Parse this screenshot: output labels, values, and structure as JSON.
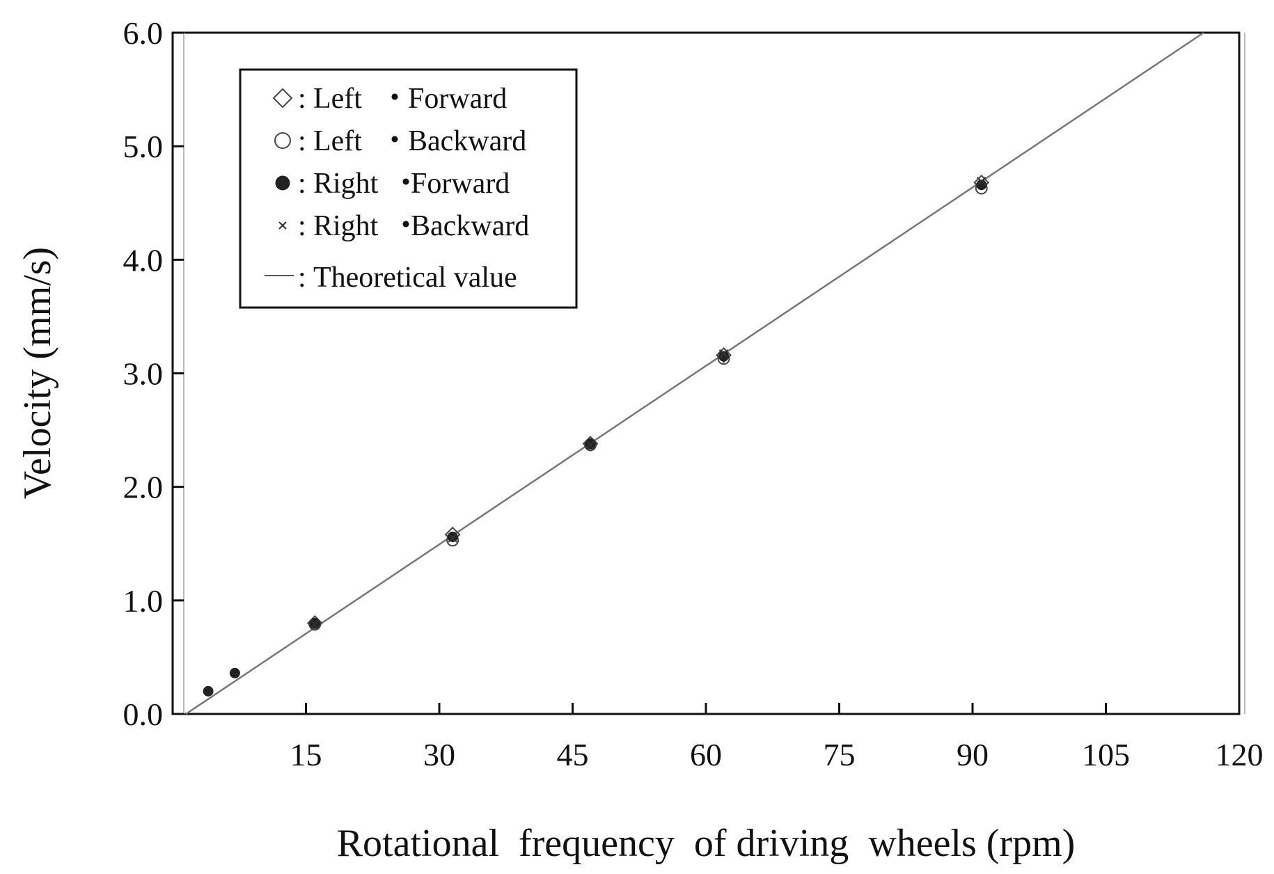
{
  "chart_data": {
    "type": "scatter",
    "title": "",
    "xlabel": "Rotational  frequency  of driving  wheels (rpm)",
    "ylabel": "Velocity (mm/s)",
    "xlim": [
      0,
      120
    ],
    "ylim": [
      0,
      6.0
    ],
    "x_ticks": [
      "15",
      "30",
      "45",
      "60",
      "75",
      "90",
      "105",
      "120"
    ],
    "x_tick_values": [
      15,
      30,
      45,
      60,
      75,
      90,
      105,
      120
    ],
    "y_ticks": [
      "0.0",
      "1.0",
      "2.0",
      "3.0",
      "4.0",
      "5.0",
      "6.0"
    ],
    "y_tick_values": [
      0,
      1,
      2,
      3,
      4,
      5,
      6
    ],
    "grid": false,
    "legend_position": "top-left",
    "series": [
      {
        "name": "Left・Forward",
        "label_side": "Left",
        "label_dir": "Forward",
        "marker": "diamond",
        "x": [
          16,
          31.5,
          47,
          62,
          91
        ],
        "y": [
          0.8,
          1.58,
          2.38,
          3.16,
          4.68
        ]
      },
      {
        "name": "Left・Backward",
        "label_side": "Left",
        "label_dir": "Backward",
        "marker": "circle",
        "x": [
          16,
          31.5,
          47,
          62,
          91
        ],
        "y": [
          0.79,
          1.53,
          2.37,
          3.13,
          4.63
        ]
      },
      {
        "name": "Right・Forward",
        "label_side": "Right",
        "label_dir": "Forward",
        "marker": "dot",
        "x": [
          4,
          7,
          16,
          31.5,
          47,
          62,
          91
        ],
        "y": [
          0.2,
          0.36,
          0.8,
          1.56,
          2.38,
          3.15,
          4.66
        ]
      },
      {
        "name": "Right・Backward",
        "label_side": "Right",
        "label_dir": "Backward",
        "marker": "cross",
        "x": [
          16,
          31.5,
          47,
          62,
          91
        ],
        "y": [
          0.79,
          1.55,
          2.37,
          3.17,
          4.69
        ]
      }
    ],
    "theory_line": {
      "name": "Theoretical value",
      "x": [
        1.5,
        116
      ],
      "y": [
        0,
        6.0
      ]
    }
  }
}
